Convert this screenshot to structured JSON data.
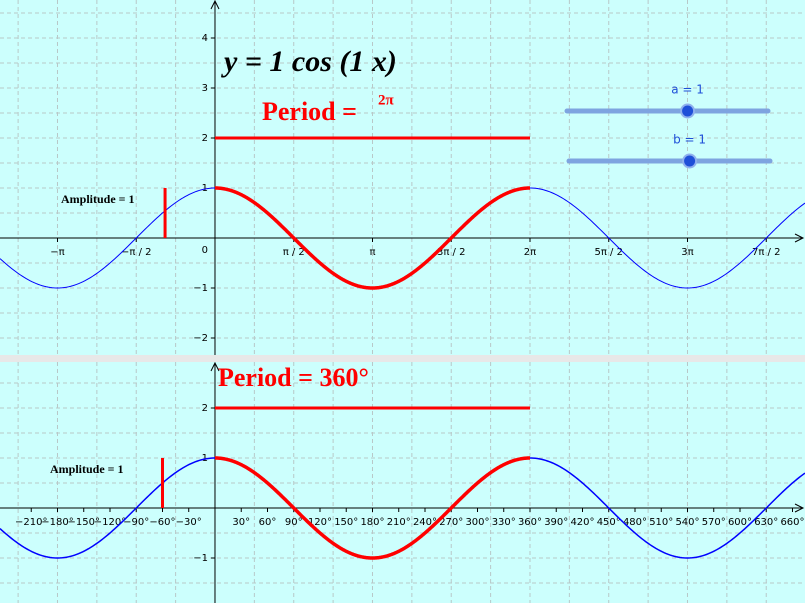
{
  "sliders": [
    {
      "label": "a = 1",
      "value": 1
    },
    {
      "label": "b = 1",
      "value": 1
    }
  ],
  "graph_radians": {
    "equation": "y = 1 cos (1 x)",
    "period_text": "Period = ",
    "period_value": "2π",
    "amplitude_text": "Amplitude = 1",
    "origin": "0",
    "xlim": [
      -1.365,
      3.746
    ],
    "ylim": [
      -2.34,
      4.76
    ],
    "xticks": [
      {
        "value": -1,
        "label": "−π"
      },
      {
        "value": -0.5,
        "label": "−π / 2"
      },
      {
        "value": 0.5,
        "label": "π / 2"
      },
      {
        "value": 1,
        "label": "π"
      },
      {
        "value": 1.5,
        "label": "3π / 2"
      },
      {
        "value": 2,
        "label": "2π"
      },
      {
        "value": 2.5,
        "label": "5π / 2"
      },
      {
        "value": 3,
        "label": "3π"
      },
      {
        "value": 3.5,
        "label": "7π / 2"
      }
    ],
    "yticks": [
      {
        "value": -2,
        "label": "−2"
      },
      {
        "value": -1,
        "label": "−1"
      },
      1,
      2,
      3,
      4
    ]
  },
  "graph_degrees": {
    "period_text": "Period = 360°",
    "amplitude_text": "Amplitude = 1",
    "xlim": [
      -245.7,
      674.3
    ],
    "ylim": [
      -1.9,
      2.92
    ],
    "xticks": [
      {
        "value": -210,
        "label": "−210°"
      },
      {
        "value": -180,
        "label": "−180°"
      },
      {
        "value": -150,
        "label": "−150°"
      },
      {
        "value": -120,
        "label": "−120°"
      },
      {
        "value": -90,
        "label": "−90°"
      },
      {
        "value": -60,
        "label": "−60°"
      },
      {
        "value": -30,
        "label": "−30°"
      },
      {
        "value": 30,
        "label": "30°"
      },
      {
        "value": 60,
        "label": "60°"
      },
      {
        "value": 90,
        "label": "90°"
      },
      {
        "value": 120,
        "label": "120°"
      },
      {
        "value": 150,
        "label": "150°"
      },
      {
        "value": 180,
        "label": "180°"
      },
      {
        "value": 210,
        "label": "210°"
      },
      {
        "value": 240,
        "label": "240°"
      },
      {
        "value": 270,
        "label": "270°"
      },
      {
        "value": 300,
        "label": "300°"
      },
      {
        "value": 330,
        "label": "330°"
      },
      {
        "value": 360,
        "label": "360°"
      },
      {
        "value": 390,
        "label": "390°"
      },
      {
        "value": 420,
        "label": "420°"
      },
      {
        "value": 450,
        "label": "450°"
      },
      {
        "value": 480,
        "label": "480°"
      },
      {
        "value": 510,
        "label": "510°"
      },
      {
        "value": 540,
        "label": "540°"
      },
      {
        "value": 570,
        "label": "570°"
      },
      {
        "value": 600,
        "label": "600°"
      },
      {
        "value": 630,
        "label": "630°"
      },
      {
        "value": 660,
        "label": "660°"
      }
    ],
    "yticks": [
      {
        "value": -1,
        "label": "−1"
      },
      1,
      2
    ]
  }
}
